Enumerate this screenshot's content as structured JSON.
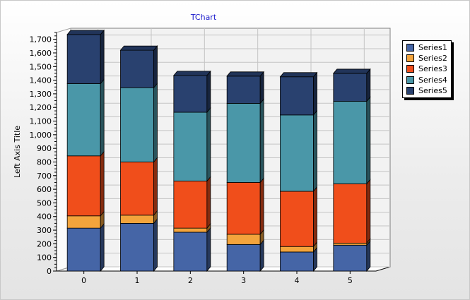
{
  "chart_data": {
    "type": "bar",
    "stacked": true,
    "three_d": true,
    "title": "TChart",
    "xlabel": "",
    "ylabel": "Left Axis Title",
    "categories": [
      "0",
      "1",
      "2",
      "3",
      "4",
      "5"
    ],
    "ylim": [
      0,
      1750
    ],
    "ytick_step": 100,
    "grid": true,
    "legend_position": "right",
    "series": [
      {
        "name": "Series1",
        "color": "#4565a6",
        "values": [
          315,
          350,
          285,
          195,
          140,
          190
        ]
      },
      {
        "name": "Series2",
        "color": "#f3a43c",
        "values": [
          90,
          60,
          30,
          75,
          40,
          15
        ]
      },
      {
        "name": "Series3",
        "color": "#f04e1b",
        "values": [
          440,
          390,
          345,
          380,
          405,
          435
        ]
      },
      {
        "name": "Series4",
        "color": "#4a97a8",
        "values": [
          530,
          545,
          505,
          580,
          560,
          605
        ]
      },
      {
        "name": "Series5",
        "color": "#29416f",
        "values": [
          360,
          275,
          270,
          200,
          280,
          205
        ]
      }
    ]
  }
}
